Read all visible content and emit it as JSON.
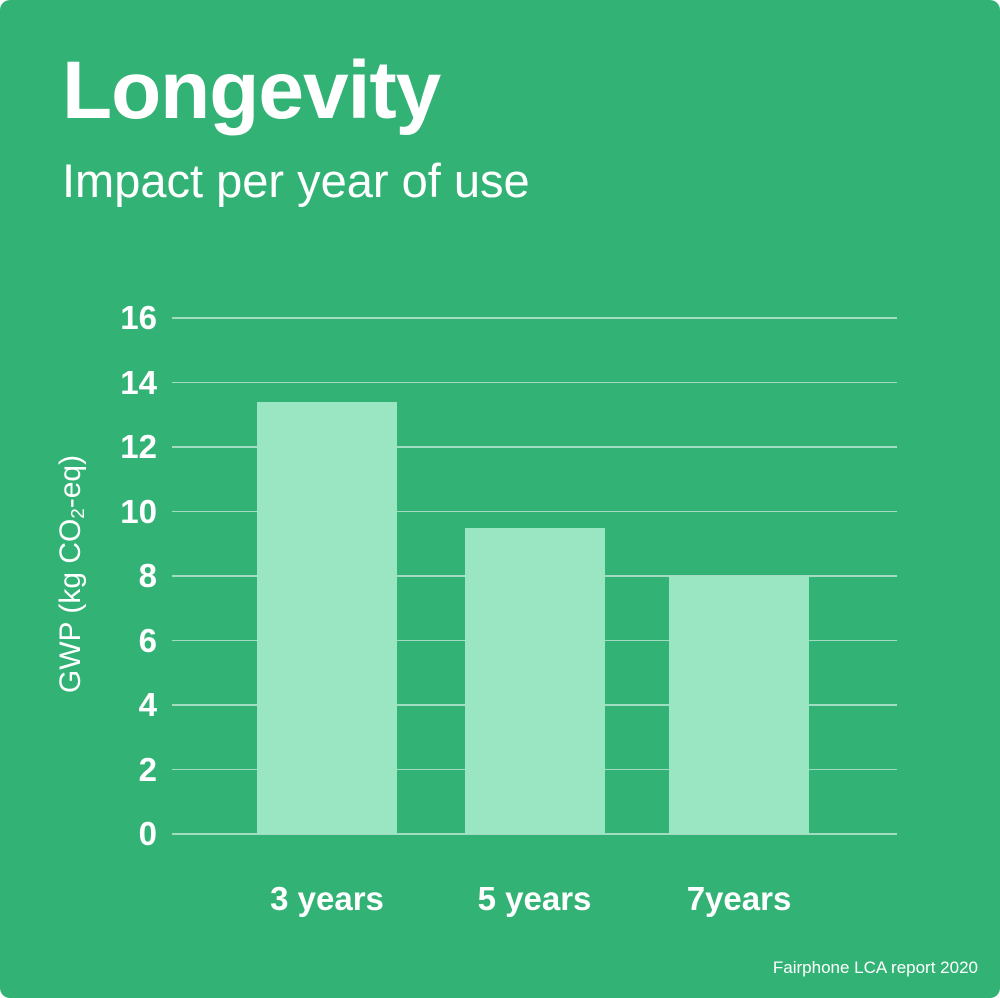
{
  "header": {
    "title": "Longevity",
    "subtitle": "Impact per year of use"
  },
  "colors": {
    "background": "#32b375",
    "bar": "#9ae6c3",
    "gridline": "rgba(255,255,255,0.55)",
    "text": "#ffffff"
  },
  "chart_data": {
    "type": "bar",
    "title": "Longevity",
    "subtitle": "Impact per year of use",
    "categories": [
      "3 years",
      "5 years",
      "7years"
    ],
    "values": [
      13.4,
      9.5,
      8
    ],
    "xlabel": "",
    "ylabel": "GWP (kg CO2-eq)",
    "ylabel_parts": {
      "pre": "GWP (kg CO",
      "sub": "2",
      "post": "-eq)"
    },
    "ylim": [
      0,
      16
    ],
    "yticks": [
      0,
      2,
      4,
      6,
      8,
      10,
      12,
      14,
      16
    ],
    "grid": "horizontal-only",
    "legend": false,
    "bar_color": "#9ae6c3",
    "background_color": "#32b375"
  },
  "footer": {
    "source": "Fairphone LCA report 2020"
  }
}
